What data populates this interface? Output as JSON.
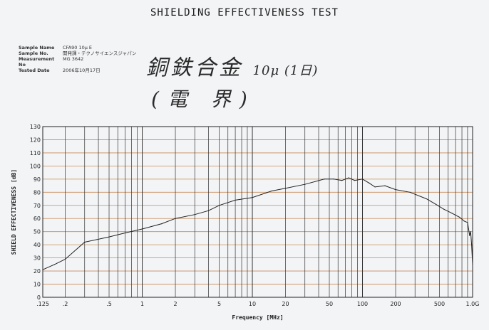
{
  "header": {
    "title": "SHIELDING EFFECTIVENESS TEST"
  },
  "meta": [
    {
      "key": "Sample Name",
      "value": "CFA90  10μ  E"
    },
    {
      "key": "Sample No.",
      "value": "開発課・テクノサイエンスジャパン"
    },
    {
      "key": "Measurement No",
      "value": "MG 3642"
    },
    {
      "key": "Tested Date",
      "value": "2006年10月17日"
    }
  ],
  "handwriting": {
    "line1": "銅鉄合金",
    "line1_small": "10μ (1日)",
    "line2": "(電 界)"
  },
  "chart_data": {
    "type": "line",
    "title": "",
    "xlabel": "Frequency [MHz]",
    "ylabel": "SHIELD EFFECTIVENESS [dB]",
    "xscale": "log",
    "xlim": [
      0.125,
      1000
    ],
    "ylim": [
      0,
      130
    ],
    "grid": true,
    "xticks": [
      {
        "v": 0.125,
        "l": ".125"
      },
      {
        "v": 0.2,
        "l": ".2"
      },
      {
        "v": 0.5,
        "l": ".5"
      },
      {
        "v": 1,
        "l": "1"
      },
      {
        "v": 2,
        "l": "2"
      },
      {
        "v": 5,
        "l": "5"
      },
      {
        "v": 10,
        "l": "10"
      },
      {
        "v": 20,
        "l": "20"
      },
      {
        "v": 50,
        "l": "50"
      },
      {
        "v": 100,
        "l": "100"
      },
      {
        "v": 200,
        "l": "200"
      },
      {
        "v": 500,
        "l": "500"
      },
      {
        "v": 1000,
        "l": "1.0G"
      }
    ],
    "yticks": [
      0,
      10,
      20,
      30,
      40,
      50,
      60,
      70,
      80,
      90,
      100,
      110,
      120,
      130
    ],
    "series": [
      {
        "points": [
          [
            0.125,
            21
          ],
          [
            0.16,
            25
          ],
          [
            0.2,
            29
          ],
          [
            0.3,
            42
          ],
          [
            0.5,
            46
          ],
          [
            0.7,
            49
          ],
          [
            1.0,
            52
          ],
          [
            1.5,
            56
          ],
          [
            2.0,
            60
          ],
          [
            3.0,
            63
          ],
          [
            4.0,
            66
          ],
          [
            5.0,
            70
          ],
          [
            7.0,
            74
          ],
          [
            10,
            76
          ],
          [
            15,
            81
          ],
          [
            20,
            83
          ],
          [
            30,
            86
          ],
          [
            45,
            90
          ],
          [
            55,
            90
          ],
          [
            65,
            89
          ],
          [
            75,
            91
          ],
          [
            85,
            89
          ],
          [
            100,
            90
          ],
          [
            115,
            87
          ],
          [
            130,
            84
          ],
          [
            160,
            85
          ],
          [
            200,
            82
          ],
          [
            270,
            80
          ],
          [
            380,
            75
          ],
          [
            460,
            71
          ],
          [
            550,
            67
          ],
          [
            650,
            64
          ],
          [
            760,
            61
          ],
          [
            840,
            58
          ],
          [
            900,
            57
          ],
          [
            920,
            52
          ],
          [
            940,
            47
          ],
          [
            960,
            50
          ],
          [
            980,
            40
          ],
          [
            1000,
            25
          ]
        ]
      }
    ]
  }
}
